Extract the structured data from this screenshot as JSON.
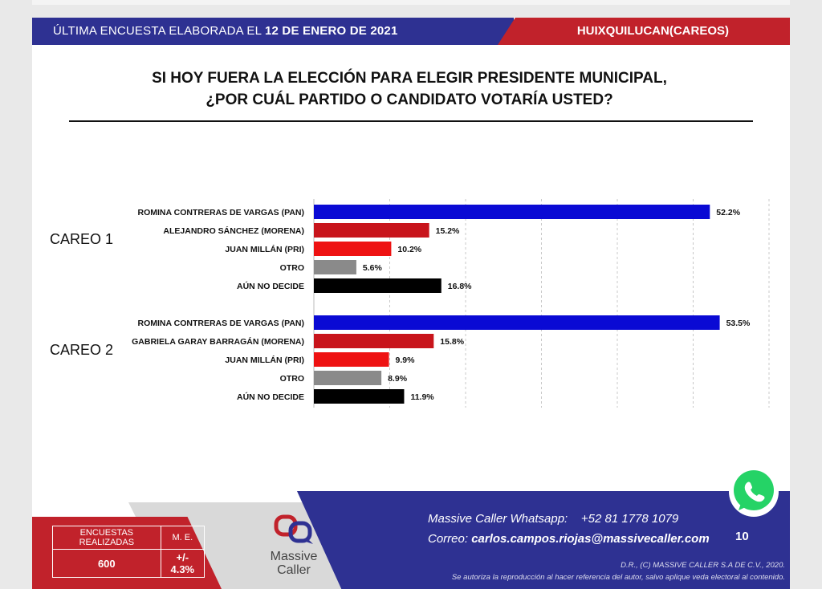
{
  "header": {
    "prefix": "ÚLTIMA ENCUESTA ELABORADA EL",
    "date": "12 DE ENERO DE 2021",
    "location": "HUIXQUILUCAN(CAREOS)"
  },
  "question": {
    "line1": "SI HOY FUERA LA ELECCIÓN PARA ELEGIR PRESIDENTE MUNICIPAL,",
    "line2": "¿POR CUÁL PARTIDO O CANDIDATO VOTARÍA USTED?"
  },
  "chart_data": {
    "type": "bar",
    "orientation": "horizontal",
    "grid": true,
    "xlim": [
      0,
      60
    ],
    "groups": [
      {
        "label": "CAREO 1",
        "categories": [
          "ROMINA CONTRERAS DE VARGAS (PAN)",
          "ALEJANDRO SÁNCHEZ (MORENA)",
          "JUAN MILLÁN (PRI)",
          "OTRO",
          "AÚN NO DECIDE"
        ],
        "values": [
          52.2,
          15.2,
          10.2,
          5.6,
          16.8
        ],
        "labels": [
          "52.2%",
          "15.2%",
          "10.2%",
          "5.6%",
          "16.8%"
        ],
        "colors": [
          "#0a0ad4",
          "#c8141b",
          "#ee1212",
          "#8a8a8a",
          "#000000"
        ]
      },
      {
        "label": "CAREO 2",
        "categories": [
          "ROMINA CONTRERAS DE VARGAS (PAN)",
          "GABRIELA GARAY BARRAGÁN (MORENA)",
          "JUAN MILLÁN (PRI)",
          "OTRO",
          "AÚN NO DECIDE"
        ],
        "values": [
          53.5,
          15.8,
          9.9,
          8.9,
          11.9
        ],
        "labels": [
          "53.5%",
          "15.8%",
          "9.9%",
          "8.9%",
          "11.9%"
        ],
        "colors": [
          "#0a0ad4",
          "#c8141b",
          "#ee1212",
          "#8a8a8a",
          "#000000"
        ]
      }
    ]
  },
  "footer": {
    "encuestas_label": "ENCUESTAS REALIZADAS",
    "encuestas_value": "600",
    "me_label": "M. E.",
    "me_value": "+/- 4.3%",
    "logo_line1": "Massive",
    "logo_line2": "Caller",
    "whatsapp": "Massive Caller Whatsapp:    +52 81 1778 1079",
    "correo_label": "Correo:",
    "correo_email": "carlos.campos.riojas@massivecaller.com",
    "page": "10",
    "legal1": "D.R., (C) MASSIVE CALLER S.A DE C.V., 2020.",
    "legal2": "Se autoriza la reproducción al hacer referencia del autor, salvo aplique veda electoral al contenido."
  },
  "colors": {
    "blue": "#2e3192",
    "red": "#c1222b",
    "whatsapp": "#25d366"
  },
  "icons": {
    "whatsapp": "whatsapp-icon",
    "logo": "massive-caller-logo"
  }
}
